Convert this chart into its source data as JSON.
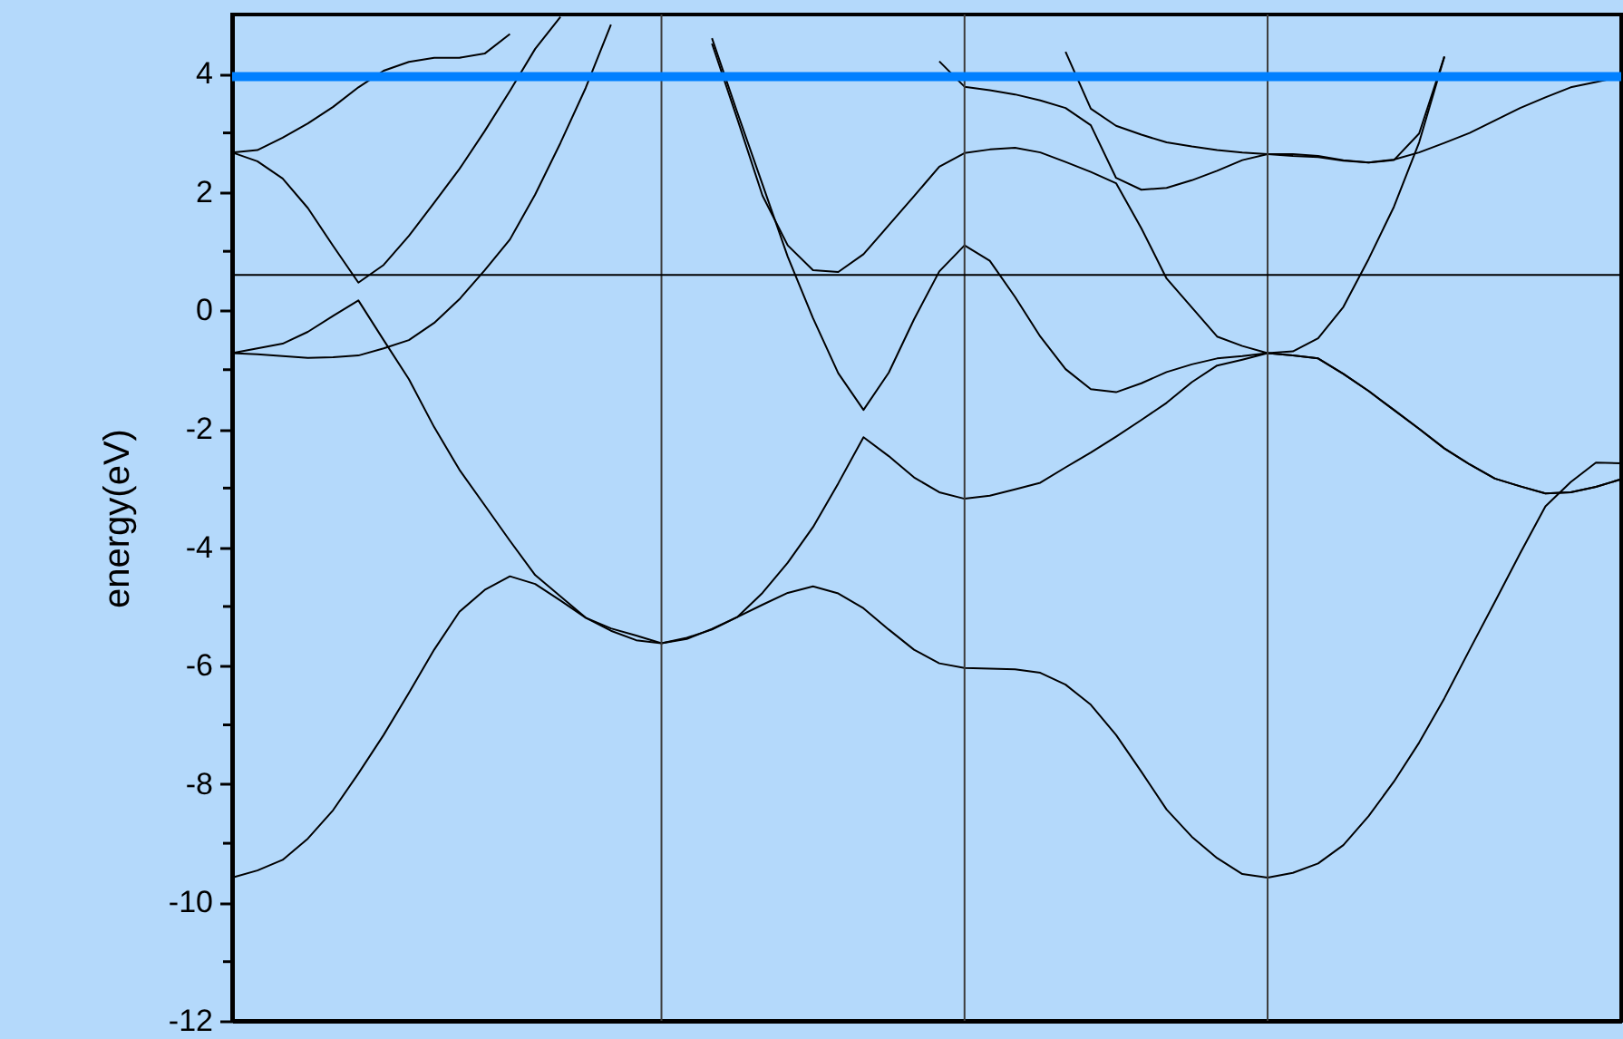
{
  "chart_data": {
    "type": "line",
    "ylabel": "energy(eV)",
    "ylim": [
      -12,
      5
    ],
    "yticks": [
      -12,
      {
        "value": -11,
        "label": null
      },
      -10,
      {
        "value": -9,
        "label": null
      },
      -8,
      {
        "value": -7,
        "label": null
      },
      -6,
      {
        "value": -5,
        "label": null
      },
      -4,
      {
        "value": -3,
        "label": null
      },
      -2,
      {
        "value": -1,
        "label": null
      },
      0,
      {
        "value": 1,
        "label": null
      },
      2,
      {
        "value": 3,
        "label": null
      },
      4
    ],
    "tick_labels": "y",
    "grid": "x",
    "marker": "none",
    "line_style": "solid",
    "categories": [
      null,
      null,
      null,
      null,
      null,
      null,
      null,
      null,
      null,
      null,
      null,
      null,
      null,
      null,
      null,
      null,
      null,
      null,
      null,
      null,
      null,
      null,
      null,
      null,
      null,
      null,
      null,
      null,
      null,
      null,
      null,
      null,
      null,
      null,
      null,
      null,
      null,
      null,
      null,
      null,
      null,
      null,
      null,
      null,
      null,
      null,
      null,
      null,
      null,
      null,
      null,
      null,
      null,
      null,
      null,
      null
    ],
    "series": [
      {
        "color": "#000000",
        "values": [
          -9.58,
          -9.46,
          -9.28,
          -8.92,
          -8.44,
          -7.82,
          -7.17,
          -6.46,
          -5.73,
          -5.09,
          -4.72,
          -4.49,
          -4.62,
          -4.9,
          -5.19,
          -5.37,
          -5.49,
          -5.62,
          -5.53,
          -5.39,
          -5.18,
          -4.97,
          -4.77,
          -4.66,
          -4.78,
          -5.03,
          -5.39,
          -5.73,
          -5.96,
          -6.04,
          -6.05,
          -6.06,
          -6.12,
          -6.32,
          -6.66,
          -7.17,
          -7.79,
          -8.43,
          -8.89,
          -9.25,
          -9.52,
          -9.58,
          -9.5,
          -9.34,
          -9.03,
          -8.54,
          -7.96,
          -7.3,
          -6.55,
          -5.73,
          -4.92,
          -4.1,
          -3.31,
          -2.9,
          -2.57,
          -2.58
        ]
      },
      {
        "color": "#000000",
        "values": [
          -0.72,
          -0.64,
          -0.56,
          -0.36,
          -0.09,
          0.17,
          -0.5,
          -1.16,
          -1.97,
          -2.69,
          -3.29,
          -3.89,
          -4.47,
          -4.83,
          -5.19,
          -5.41,
          -5.57,
          -5.62,
          -5.55,
          -5.38,
          -5.18,
          -4.77,
          -4.26,
          -3.66,
          -2.92,
          -2.14,
          -2.46,
          -2.82,
          -3.07,
          -3.18,
          -3.13,
          -3.02,
          -2.91,
          -2.65,
          -2.4,
          -2.13,
          -1.85,
          -1.56,
          -1.21,
          -0.93,
          -0.83,
          -0.72,
          -0.76,
          -0.81,
          -1.07,
          -1.36,
          -1.68,
          -2.0,
          -2.33,
          -2.6,
          -2.84,
          -2.97,
          -3.09,
          -3.07,
          -2.98,
          -2.85
        ]
      },
      {
        "color": "#000000",
        "values": [
          -0.72,
          -0.74,
          -0.77,
          -0.8,
          -0.79,
          -0.76,
          -0.64,
          -0.5,
          -0.21,
          0.19,
          0.68,
          1.2,
          1.96,
          2.83,
          3.76,
          4.83,
          null,
          null,
          null,
          4.6,
          3.35,
          2.13,
          0.91,
          -0.13,
          -1.06,
          -1.68,
          -1.05,
          -0.15,
          0.66,
          1.1,
          0.84,
          0.23,
          -0.44,
          -0.99,
          -1.33,
          -1.38,
          -1.23,
          -1.04,
          -0.91,
          -0.81,
          -0.77,
          -0.72,
          -0.76,
          -0.81,
          -1.07,
          -1.36,
          -1.68,
          -2.0,
          -2.33,
          -2.6,
          -2.84,
          -2.97,
          -3.09,
          -3.07,
          -2.98,
          -2.85
        ]
      },
      {
        "color": "#000000",
        "values": [
          2.67,
          2.52,
          2.23,
          1.73,
          1.09,
          0.47,
          0.77,
          1.26,
          1.82,
          2.39,
          3.03,
          3.71,
          4.42,
          4.96,
          null,
          null,
          null,
          null,
          null,
          4.51,
          3.24,
          1.94,
          1.1,
          0.68,
          0.65,
          0.95,
          1.44,
          1.93,
          2.43,
          2.66,
          2.72,
          2.75,
          2.67,
          2.51,
          2.34,
          2.15,
          1.39,
          0.54,
          0.05,
          -0.44,
          -0.6,
          -0.72,
          -0.69,
          -0.47,
          0.06,
          0.87,
          1.75,
          2.84,
          4.29,
          null,
          null,
          null,
          null,
          null,
          null,
          null
        ]
      },
      {
        "color": "#000000",
        "values": [
          2.67,
          2.71,
          2.92,
          3.16,
          3.44,
          3.77,
          4.05,
          4.2,
          4.27,
          4.27,
          4.34,
          4.67,
          null,
          null,
          null,
          null,
          null,
          null,
          null,
          null,
          null,
          null,
          null,
          null,
          null,
          null,
          null,
          null,
          4.21,
          3.78,
          3.72,
          3.65,
          3.55,
          3.42,
          3.13,
          2.24,
          2.04,
          2.07,
          2.2,
          2.36,
          2.54,
          2.64,
          2.64,
          2.61,
          2.54,
          2.5,
          2.55,
          2.67,
          2.83,
          3.0,
          3.21,
          3.42,
          3.6,
          3.77,
          3.86,
          3.95
        ]
      },
      {
        "color": "#000000",
        "values": [
          null,
          null,
          null,
          null,
          null,
          null,
          null,
          null,
          null,
          null,
          null,
          null,
          null,
          null,
          null,
          null,
          null,
          null,
          null,
          null,
          null,
          null,
          null,
          null,
          null,
          null,
          null,
          null,
          null,
          null,
          null,
          null,
          null,
          4.37,
          3.41,
          3.12,
          2.97,
          2.84,
          2.77,
          2.71,
          2.67,
          2.64,
          2.61,
          2.59,
          2.53,
          2.5,
          2.54,
          2.99,
          4.29,
          null,
          null,
          null,
          null,
          null,
          null,
          null
        ]
      }
    ],
    "ref_lines": [
      {
        "axis": "y",
        "value": 0.6,
        "color": "#000000"
      },
      {
        "axis": "y",
        "value": 3.95,
        "color": "#0080ff"
      }
    ]
  }
}
